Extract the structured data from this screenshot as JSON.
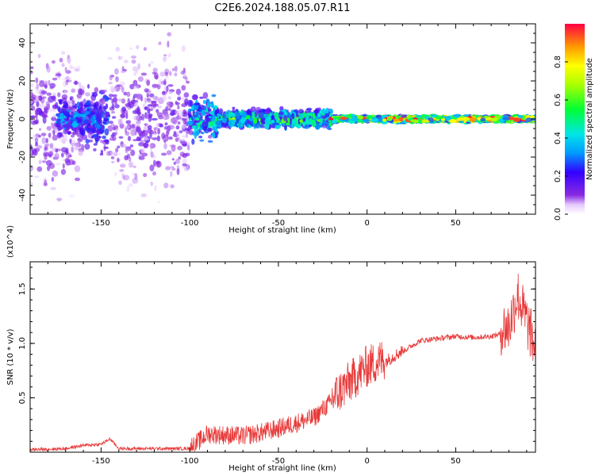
{
  "title": "C2E6.2024.188.05.07.R11",
  "chart_data": [
    {
      "type": "heatmap",
      "xlabel": "Height of straight line (km)",
      "ylabel": "Frequency (Hz)",
      "xlim": [
        -190,
        95
      ],
      "ylim": [
        -50,
        50
      ],
      "x_ticks": [
        -150,
        -100,
        -50,
        0,
        50
      ],
      "y_ticks": [
        -40,
        -20,
        0,
        20,
        40
      ],
      "colorbar": {
        "label": "Normalized spectral amplitude",
        "range": [
          0,
          1
        ],
        "ticks": [
          "0.0",
          "0.2",
          "0.4",
          "0.6",
          "0.8"
        ],
        "colormap": "rainbow"
      },
      "description_regions": [
        {
          "x": [
            -190,
            -160
          ],
          "freq_spread": 50,
          "amplitude": 0.12
        },
        {
          "x": [
            -175,
            -150
          ],
          "freq_spread": 12,
          "amplitude": 0.3
        },
        {
          "x": [
            -158,
            -146
          ],
          "freq_spread": 25,
          "amplitude": 0.25
        },
        {
          "x": [
            -145,
            -100
          ],
          "freq_spread": 50,
          "amplitude": 0.12
        },
        {
          "x": [
            -100,
            -85
          ],
          "freq_spread": 15,
          "amplitude": 0.4
        },
        {
          "x": [
            -85,
            -20
          ],
          "freq_spread": 6,
          "amplitude": 0.5
        },
        {
          "x": [
            -20,
            95
          ],
          "freq_spread": 2,
          "amplitude": 0.8
        }
      ]
    },
    {
      "type": "line",
      "xlabel": "Height of straight line (km)",
      "ylabel": "SNR (10 * v/v)",
      "scale_label": "(x10^4)",
      "xlim": [
        -190,
        95
      ],
      "ylim": [
        0,
        1.75
      ],
      "x_ticks": [
        -150,
        -100,
        -50,
        0,
        50
      ],
      "y_ticks": [
        "0.5",
        "1.0",
        "1.5"
      ],
      "color": "#e83a3a",
      "series_x": [
        -190,
        -170,
        -160,
        -150,
        -145,
        -140,
        -100,
        -95,
        -90,
        -80,
        -70,
        -60,
        -50,
        -40,
        -30,
        -20,
        -10,
        0,
        10,
        20,
        30,
        40,
        50,
        60,
        70,
        80,
        85,
        90,
        95
      ],
      "series_y": [
        0.02,
        0.03,
        0.06,
        0.07,
        0.12,
        0.03,
        0.03,
        0.08,
        0.15,
        0.14,
        0.13,
        0.16,
        0.2,
        0.25,
        0.3,
        0.45,
        0.6,
        0.75,
        0.82,
        0.92,
        1.02,
        1.04,
        1.06,
        1.05,
        1.06,
        1.1,
        1.4,
        1.15,
        0.9
      ]
    }
  ]
}
